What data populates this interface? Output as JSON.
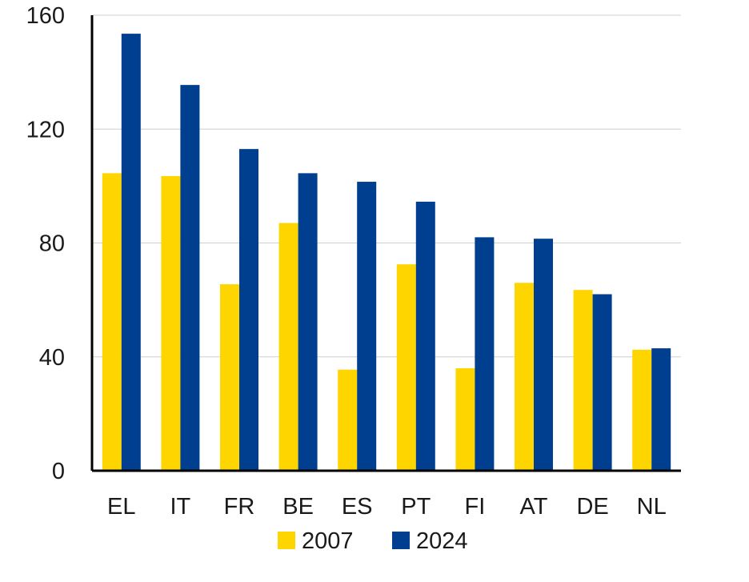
{
  "chart_data": {
    "type": "bar",
    "title": "",
    "xlabel": "",
    "ylabel": "",
    "categories": [
      "EL",
      "IT",
      "FR",
      "BE",
      "ES",
      "PT",
      "FI",
      "AT",
      "DE",
      "NL"
    ],
    "series": [
      {
        "name": "2007",
        "color": "#FFD500",
        "values": [
          104.5,
          103.5,
          65.5,
          87.0,
          35.5,
          72.5,
          36.0,
          66.0,
          63.5,
          42.5
        ]
      },
      {
        "name": "2024",
        "color": "#003F8F",
        "values": [
          153.5,
          135.5,
          113.0,
          104.5,
          101.5,
          94.5,
          82.0,
          81.5,
          62.0,
          43.0
        ]
      }
    ],
    "ylim": [
      0,
      160
    ],
    "yticks": [
      "0",
      "40",
      "80",
      "120",
      "160"
    ],
    "grid": true,
    "legend_position": "bottom"
  }
}
